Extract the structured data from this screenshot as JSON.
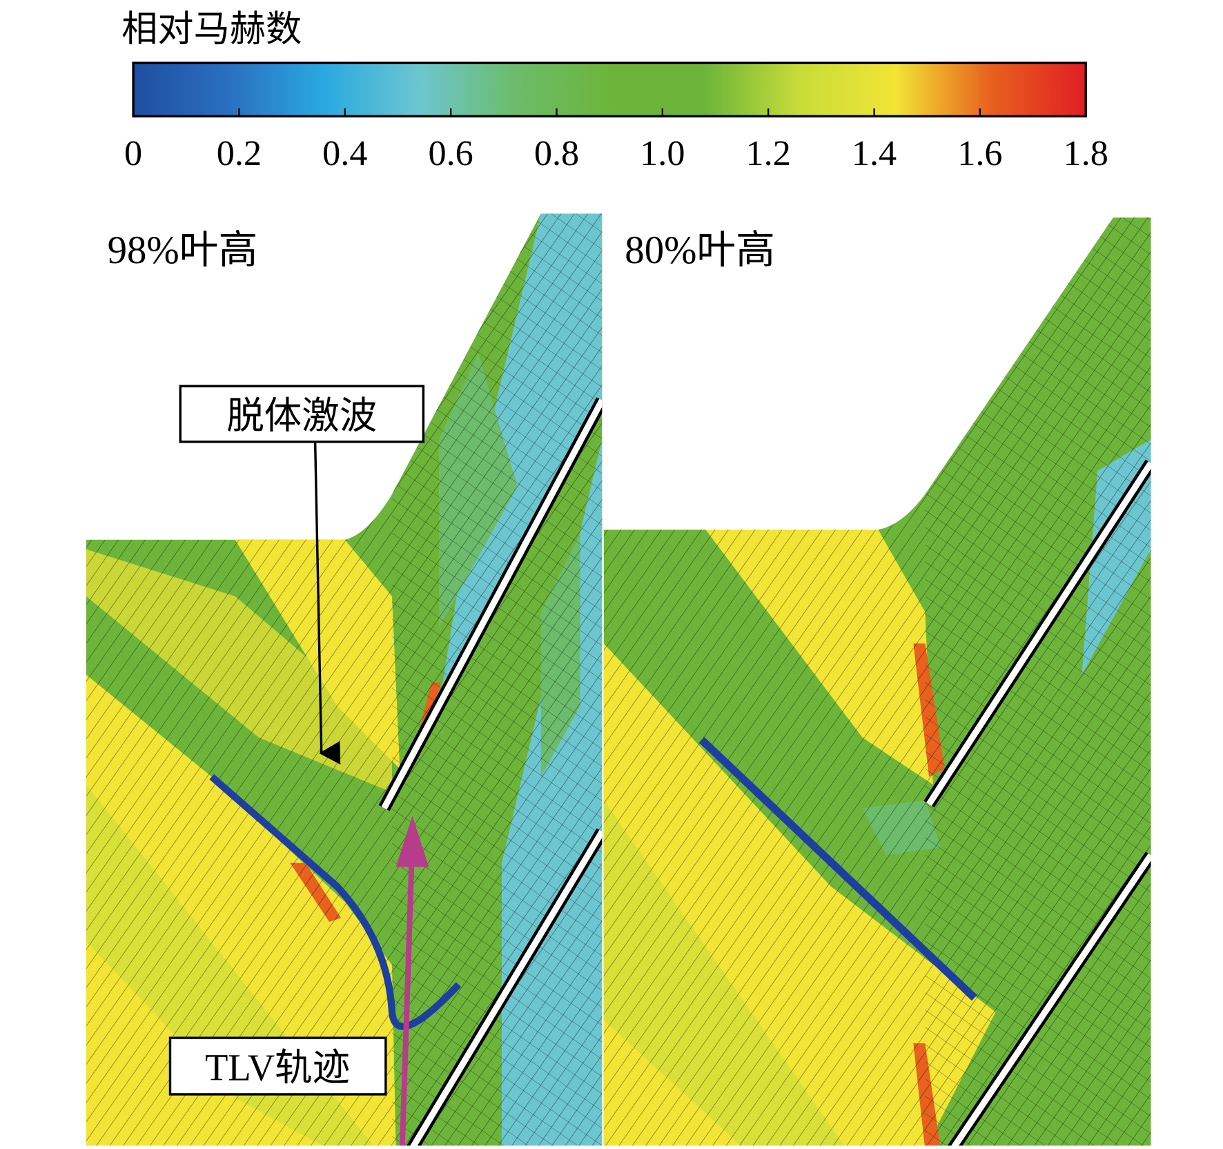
{
  "colorbar": {
    "title": "相对马赫数",
    "range": [
      0,
      1.8
    ],
    "ticks": [
      0,
      0.2,
      0.4,
      0.6,
      0.8,
      {
        "value": 1,
        "label": "1.0"
      },
      1.2,
      1.4,
      1.6,
      1.8
    ],
    "colors": [
      "#1f4ea0",
      "#2a6fc0",
      "#2aa9e0",
      "#6cc6d0",
      "#6cbc6c",
      "#6db53a",
      "#6db53a",
      "#c8dc3a",
      "#f2e535",
      "#e8611e",
      "#e01e24"
    ]
  },
  "panels": [
    {
      "label": "98%叶高"
    },
    {
      "label": "80%叶高"
    }
  ],
  "annotations": {
    "shock": "脱体激波",
    "tlv": "TLV轨迹"
  }
}
